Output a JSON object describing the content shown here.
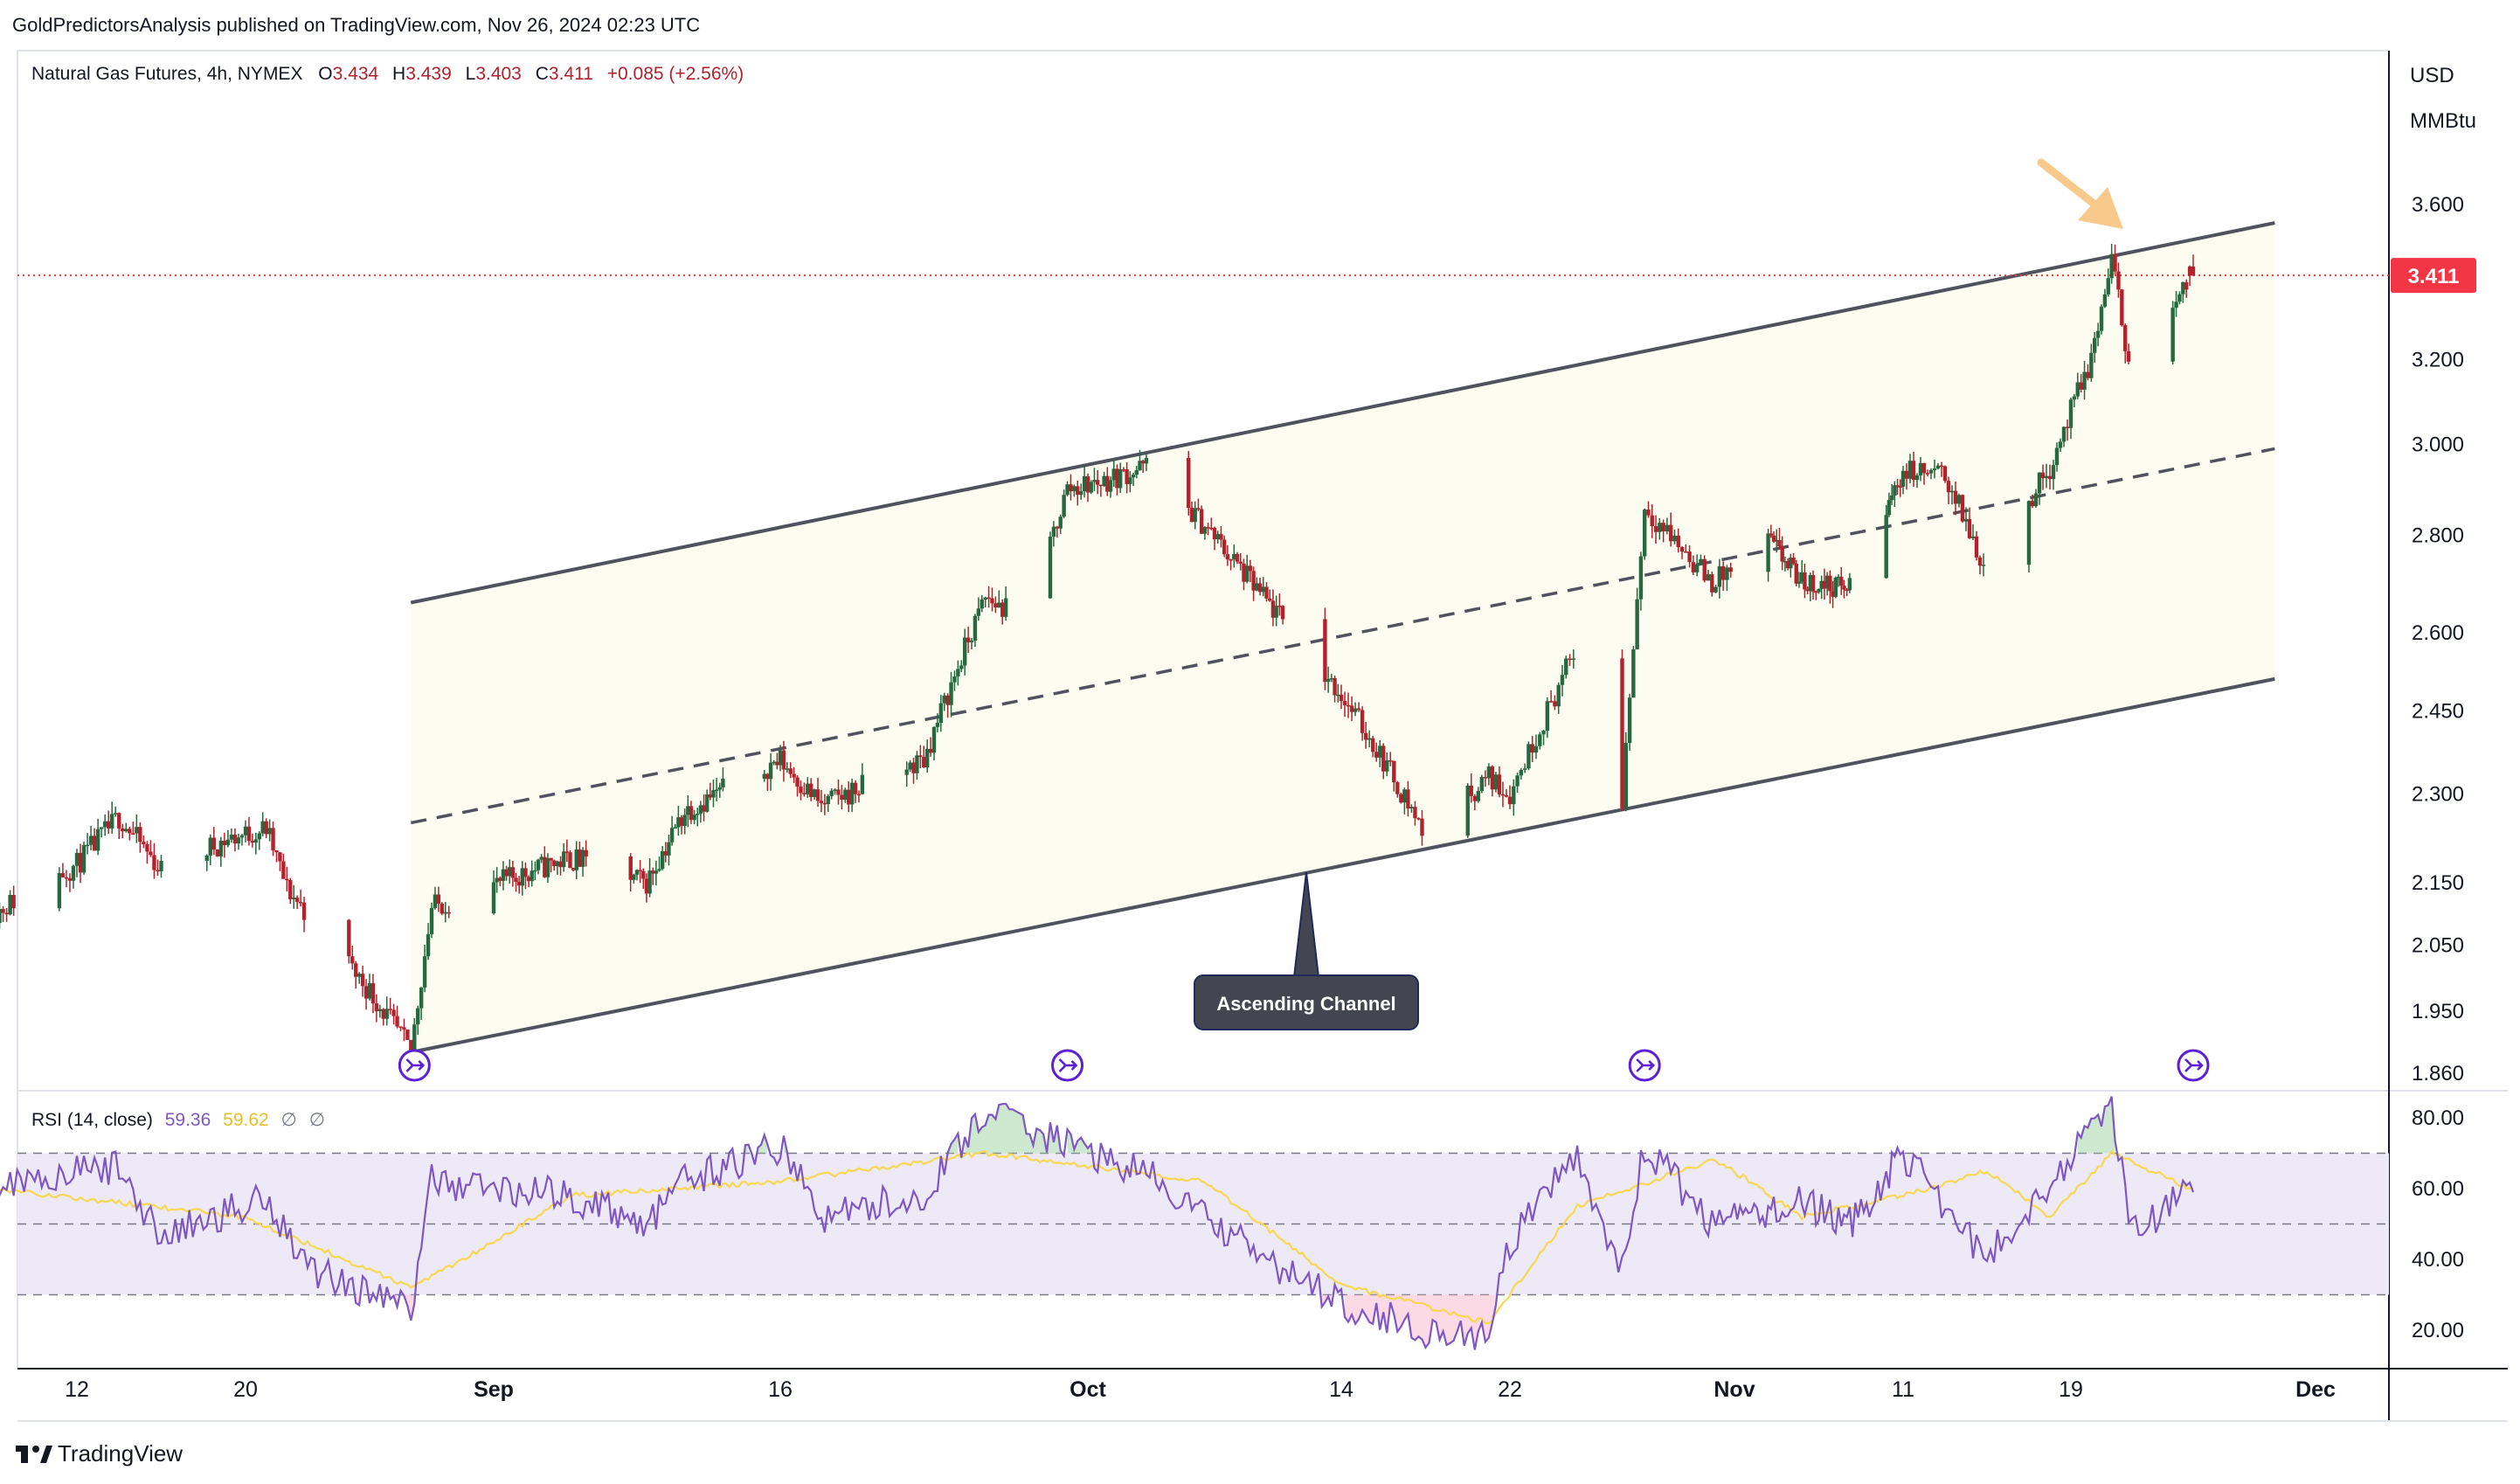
{
  "header": {
    "publisher": "GoldPredictorsAnalysis published on TradingView.com, Nov 26, 2024 02:23 UTC"
  },
  "legend": {
    "symbol": "Natural Gas Futures, 4h, NYMEX",
    "open_label": "O",
    "open": "3.434",
    "high_label": "H",
    "high": "3.439",
    "low_label": "L",
    "low": "3.403",
    "close_label": "C",
    "close": "3.411",
    "change": "+0.085 (+2.56%)"
  },
  "price_axis": {
    "currency": "USD",
    "unit": "MMBtu",
    "ticks": [
      "3.600",
      "3.200",
      "3.000",
      "2.800",
      "2.600",
      "2.450",
      "2.300",
      "2.150",
      "2.050",
      "1.950",
      "1.860"
    ],
    "last_price_label": "3.411"
  },
  "rsi": {
    "label": "RSI (14, close)",
    "value": "59.36",
    "ma_value": "59.62",
    "extra1": "∅",
    "extra2": "∅",
    "ticks": [
      "80.00",
      "60.00",
      "40.00",
      "20.00"
    ]
  },
  "time_axis": {
    "labels": [
      "12",
      "20",
      "Sep",
      "16",
      "Oct",
      "14",
      "22",
      "Nov",
      "11",
      "19",
      "Dec"
    ]
  },
  "annotation": {
    "label": "Ascending Channel"
  },
  "footer": {
    "brand": "TradingView"
  },
  "colors": {
    "up": "#089981",
    "down": "#f23645",
    "candle_up_dark": "#26683f",
    "candle_down_dark": "#b2222c",
    "channel_fill": "#fdfcf0",
    "channel_line": "#50535e",
    "rsi_line": "#7e57c2",
    "rsi_ma": "#f7d850",
    "rsi_band": "#ede9f7",
    "last_price": "#f23645",
    "arrow": "#f8c98a",
    "marker": "#5b1fd6"
  },
  "chart_data": [
    {
      "type": "candlestick",
      "title": "Natural Gas Futures, 4h, NYMEX",
      "x_labels": [
        "12",
        "20",
        "Sep",
        "16",
        "Oct",
        "14",
        "22",
        "Nov",
        "11",
        "19",
        "Dec"
      ],
      "ylim": [
        1.86,
        3.7
      ],
      "y_scale": "log",
      "anchors": [
        {
          "date": "Aug 8",
          "price": 2.1
        },
        {
          "date": "Aug 12",
          "price": 2.18
        },
        {
          "date": "Aug 14",
          "price": 2.26
        },
        {
          "date": "Aug 16",
          "price": 2.17
        },
        {
          "date": "Aug 19",
          "price": 2.22
        },
        {
          "date": "Aug 21",
          "price": 2.24
        },
        {
          "date": "Aug 22",
          "price": 2.14
        },
        {
          "date": "Aug 26",
          "price": 1.98
        },
        {
          "date": "Aug 28",
          "price": 1.89
        },
        {
          "date": "Aug 29",
          "price": 2.11
        },
        {
          "date": "Sep 3",
          "price": 2.17
        },
        {
          "date": "Sep 5",
          "price": 2.19
        },
        {
          "date": "Sep 9",
          "price": 2.15
        },
        {
          "date": "Sep 11",
          "price": 2.27
        },
        {
          "date": "Sep 16",
          "price": 2.36
        },
        {
          "date": "Sep 18",
          "price": 2.28
        },
        {
          "date": "Sep 23",
          "price": 2.36
        },
        {
          "date": "Sep 26",
          "price": 2.67
        },
        {
          "date": "Sep 28",
          "price": 2.62
        },
        {
          "date": "Sep 30",
          "price": 2.9
        },
        {
          "date": "Oct 2",
          "price": 2.92
        },
        {
          "date": "Oct 4",
          "price": 2.95
        },
        {
          "date": "Oct 7",
          "price": 2.82
        },
        {
          "date": "Oct 10",
          "price": 2.67
        },
        {
          "date": "Oct 14",
          "price": 2.48
        },
        {
          "date": "Oct 16",
          "price": 2.36
        },
        {
          "date": "Oct 18",
          "price": 2.23
        },
        {
          "date": "Oct 21",
          "price": 2.33
        },
        {
          "date": "Oct 22",
          "price": 2.3
        },
        {
          "date": "Oct 25",
          "price": 2.57
        },
        {
          "date": "Oct 27",
          "price": 2.29
        },
        {
          "date": "Oct 28",
          "price": 2.86
        },
        {
          "date": "Oct 31",
          "price": 2.7
        },
        {
          "date": "Nov 3",
          "price": 2.79
        },
        {
          "date": "Nov 5",
          "price": 2.7
        },
        {
          "date": "Nov 8",
          "price": 2.69
        },
        {
          "date": "Nov 11",
          "price": 2.94
        },
        {
          "date": "Nov 13",
          "price": 2.93
        },
        {
          "date": "Nov 15",
          "price": 2.72
        },
        {
          "date": "Nov 18",
          "price": 2.95
        },
        {
          "date": "Nov 20",
          "price": 3.2
        },
        {
          "date": "Nov 21",
          "price": 3.45
        },
        {
          "date": "Nov 22",
          "price": 3.15
        },
        {
          "date": "Nov 25",
          "price": 3.41
        }
      ],
      "last": {
        "open": 3.434,
        "high": 3.439,
        "low": 3.403,
        "close": 3.411,
        "change": 0.085,
        "change_pct": 2.56
      },
      "channel": {
        "upper": [
          {
            "date": "Aug 28",
            "price": 2.66
          },
          {
            "date": "Nov 29",
            "price": 3.55
          }
        ],
        "middle": [
          {
            "date": "Aug 28",
            "price": 2.25
          },
          {
            "date": "Nov 29",
            "price": 2.99
          }
        ],
        "lower": [
          {
            "date": "Aug 28",
            "price": 1.89
          },
          {
            "date": "Nov 29",
            "price": 2.51
          }
        ]
      },
      "annotations": [
        "Ascending Channel"
      ]
    },
    {
      "type": "line",
      "title": "RSI (14, close)",
      "ylim": [
        10,
        90
      ],
      "bands": [
        30,
        50,
        70
      ],
      "series": [
        {
          "name": "RSI",
          "anchors": [
            {
              "date": "Aug 8",
              "value": 62
            },
            {
              "date": "Aug 14",
              "value": 66
            },
            {
              "date": "Aug 16",
              "value": 46
            },
            {
              "date": "Aug 21",
              "value": 58
            },
            {
              "date": "Aug 23",
              "value": 38
            },
            {
              "date": "Aug 28",
              "value": 26
            },
            {
              "date": "Aug 29",
              "value": 62
            },
            {
              "date": "Sep 5",
              "value": 58
            },
            {
              "date": "Sep 9",
              "value": 50
            },
            {
              "date": "Sep 11",
              "value": 62
            },
            {
              "date": "Sep 16",
              "value": 72
            },
            {
              "date": "Sep 18",
              "value": 52
            },
            {
              "date": "Sep 23",
              "value": 58
            },
            {
              "date": "Sep 26",
              "value": 82
            },
            {
              "date": "Oct 2",
              "value": 68
            },
            {
              "date": "Oct 4",
              "value": 64
            },
            {
              "date": "Oct 7",
              "value": 52
            },
            {
              "date": "Oct 10",
              "value": 40
            },
            {
              "date": "Oct 14",
              "value": 28
            },
            {
              "date": "Oct 18",
              "value": 20
            },
            {
              "date": "Oct 21",
              "value": 18
            },
            {
              "date": "Oct 22",
              "value": 44
            },
            {
              "date": "Oct 25",
              "value": 70
            },
            {
              "date": "Oct 27",
              "value": 36
            },
            {
              "date": "Oct 28",
              "value": 72
            },
            {
              "date": "Oct 31",
              "value": 50
            },
            {
              "date": "Nov 5",
              "value": 56
            },
            {
              "date": "Nov 8",
              "value": 50
            },
            {
              "date": "Nov 11",
              "value": 70
            },
            {
              "date": "Nov 15",
              "value": 40
            },
            {
              "date": "Nov 18",
              "value": 62
            },
            {
              "date": "Nov 21",
              "value": 84
            },
            {
              "date": "Nov 22",
              "value": 48
            },
            {
              "date": "Nov 25",
              "value": 59.36
            }
          ]
        },
        {
          "name": "RSI-based MA",
          "anchors": [
            {
              "date": "Aug 8",
              "value": 60
            },
            {
              "date": "Aug 20",
              "value": 52
            },
            {
              "date": "Aug 28",
              "value": 32
            },
            {
              "date": "Sep 5",
              "value": 58
            },
            {
              "date": "Sep 16",
              "value": 62
            },
            {
              "date": "Sep 26",
              "value": 70
            },
            {
              "date": "Oct 7",
              "value": 62
            },
            {
              "date": "Oct 14",
              "value": 33
            },
            {
              "date": "Oct 21",
              "value": 22
            },
            {
              "date": "Oct 25",
              "value": 55
            },
            {
              "date": "Oct 31",
              "value": 68
            },
            {
              "date": "Nov 5",
              "value": 52
            },
            {
              "date": "Nov 11",
              "value": 58
            },
            {
              "date": "Nov 15",
              "value": 65
            },
            {
              "date": "Nov 18",
              "value": 52
            },
            {
              "date": "Nov 21",
              "value": 70
            },
            {
              "date": "Nov 25",
              "value": 59.62
            }
          ]
        }
      ]
    }
  ]
}
